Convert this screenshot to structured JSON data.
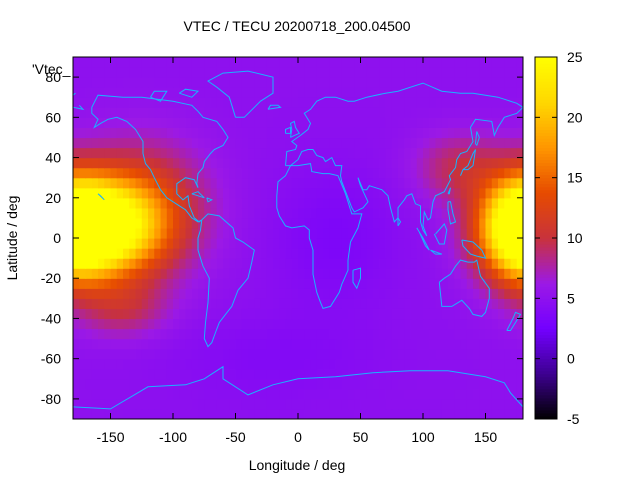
{
  "chart_data": {
    "type": "heatmap",
    "title": "VTEC / TECU 20200718_200.04500",
    "xlabel": "Longitude / deg",
    "ylabel": "Latitude / deg",
    "corner_label": "'Vtec_",
    "xlim": [
      -180,
      180
    ],
    "ylim": [
      -90,
      90
    ],
    "x_ticks": [
      -150,
      -100,
      -50,
      0,
      50,
      100,
      150
    ],
    "y_ticks": [
      -80,
      -60,
      -40,
      -20,
      0,
      20,
      40,
      60,
      80
    ],
    "colorbar": {
      "min": -5,
      "max": 25,
      "ticks": [
        -5,
        0,
        5,
        10,
        15,
        20,
        25
      ],
      "colormap": [
        "#000000",
        "#3d0090",
        "#7300ff",
        "#9b19e6",
        "#c8323c",
        "#e64b00",
        "#ff9600",
        "#ffd700",
        "#ffff00"
      ]
    },
    "background_level": 5,
    "anomalies": [
      {
        "lon": -160,
        "lat": 5,
        "value": 20.5,
        "sigma_lon": 32,
        "sigma_lat": 16
      },
      {
        "lon": -125,
        "lat": 15,
        "value": 7.5,
        "sigma_lon": 35,
        "sigma_lat": 22
      },
      {
        "lon": 178,
        "lat": 5,
        "value": 16,
        "sigma_lon": 22,
        "sigma_lat": 18
      },
      {
        "lon": 130,
        "lat": 35,
        "value": 4.5,
        "sigma_lon": 25,
        "sigma_lat": 12
      },
      {
        "lon": -140,
        "lat": -35,
        "value": 4,
        "sigma_lon": 25,
        "sigma_lat": 10
      },
      {
        "lon": 30,
        "lat": 0,
        "value": -1.5,
        "sigma_lon": 35,
        "sigma_lat": 25
      },
      {
        "lon": -20,
        "lat": -60,
        "value": -1,
        "sigma_lon": 60,
        "sigma_lat": 15
      }
    ],
    "grid": false,
    "coastlines": true,
    "coastline_color": "#19b3ff"
  }
}
